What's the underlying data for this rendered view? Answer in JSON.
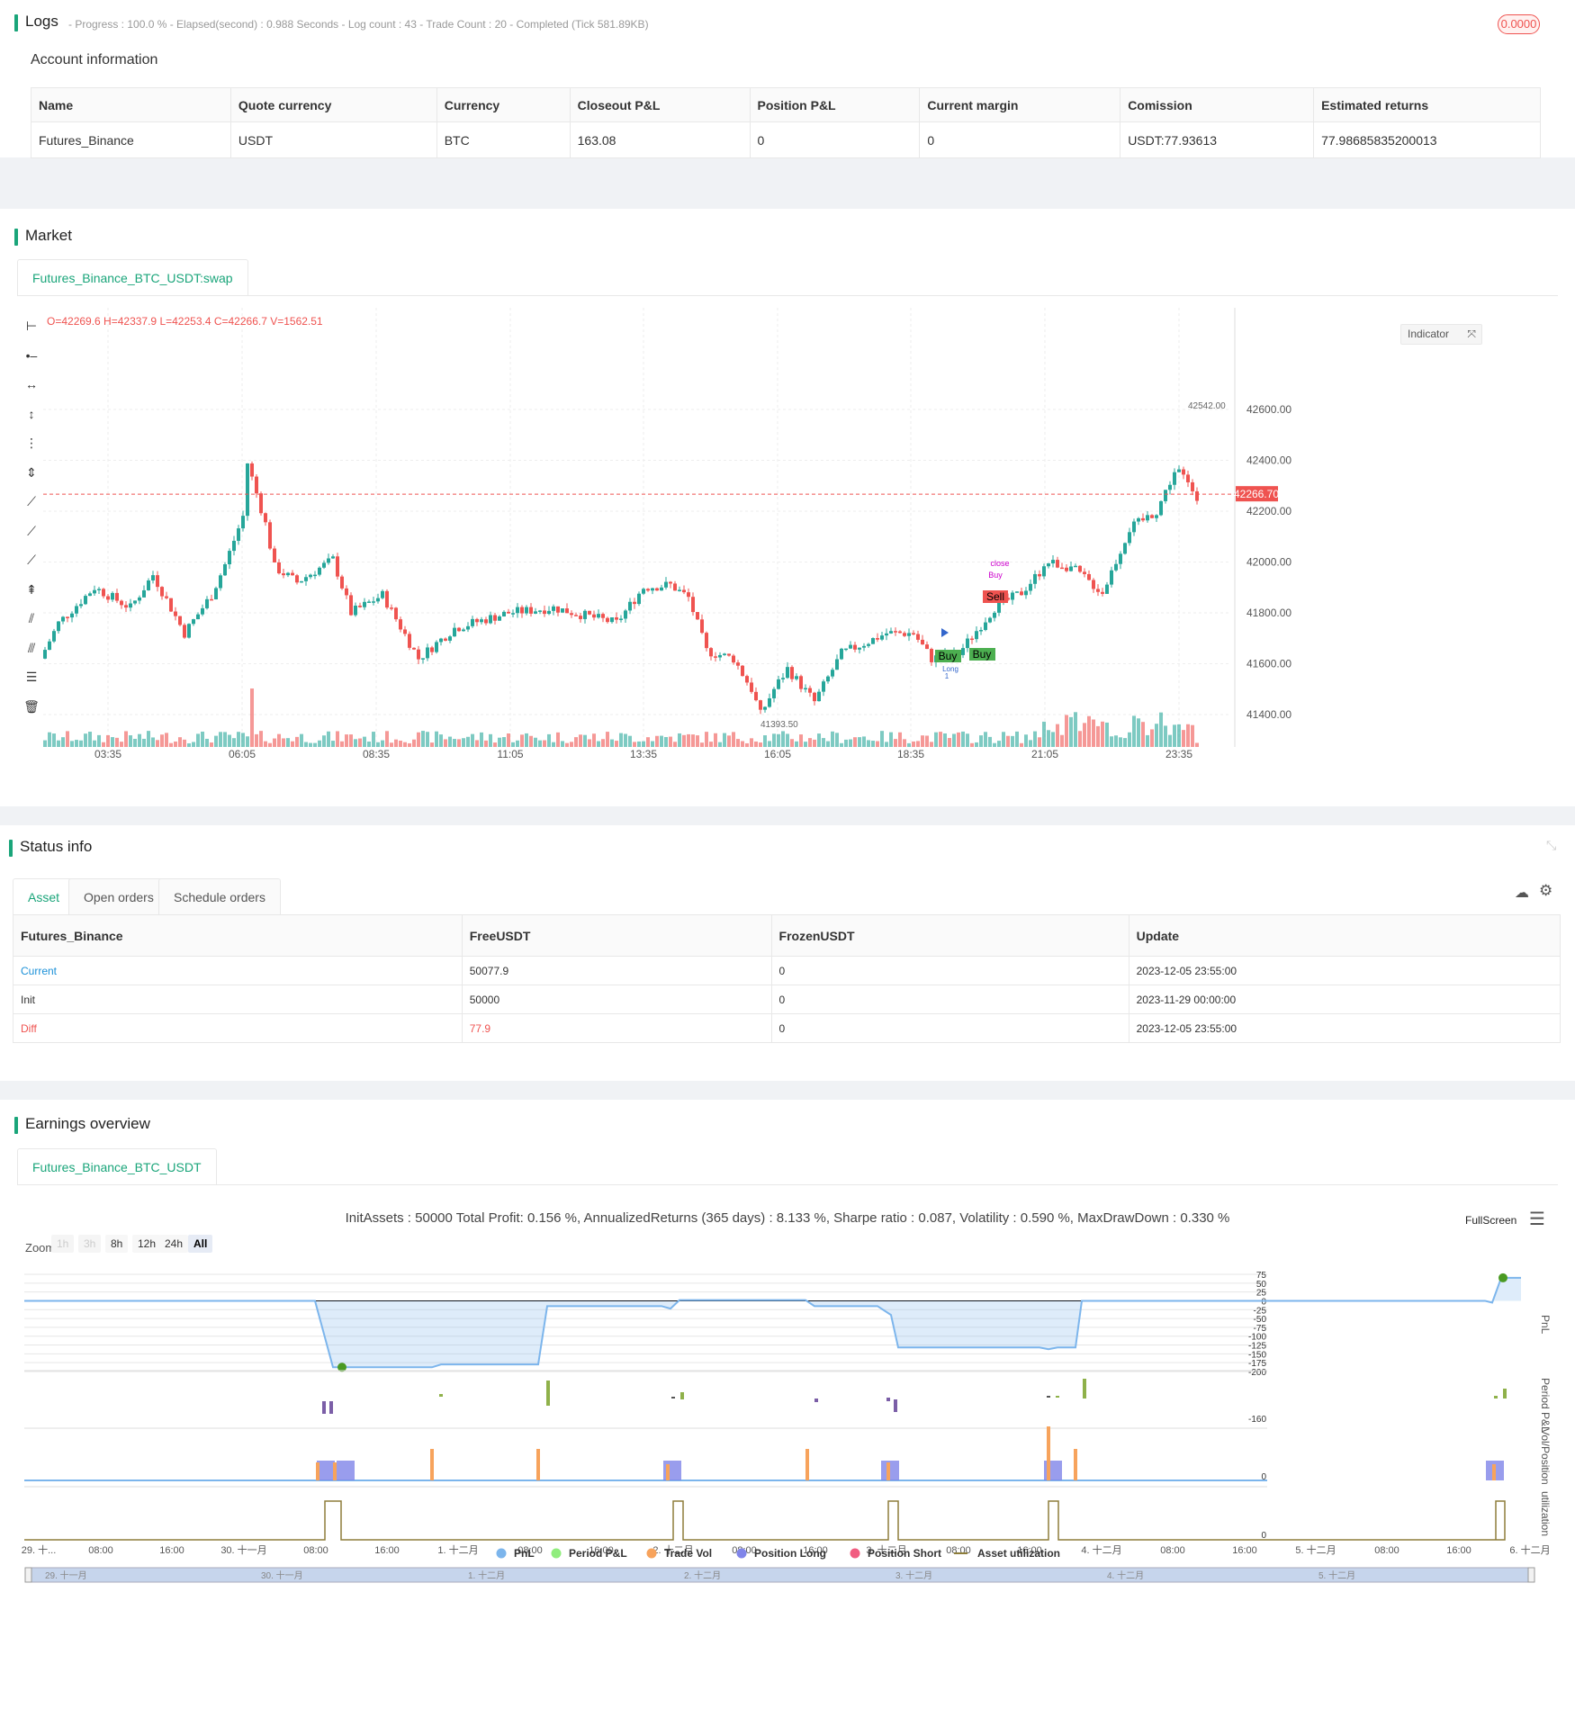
{
  "logs": {
    "title": "Logs",
    "summary": "- Progress : 100.0 % - Elapsed(second) : 0.988  Seconds - Log count : 43 - Trade Count : 20 - Completed (Tick 581.89KB)",
    "badge": "0.0000",
    "account_title": "Account information",
    "columns": [
      "Name",
      "Quote currency",
      "Currency",
      "Closeout P&L",
      "Position P&L",
      "Current margin",
      "Comission",
      "Estimated returns"
    ],
    "row": [
      "Futures_Binance",
      "USDT",
      "BTC",
      "163.08",
      "0",
      "0",
      "USDT:77.93613",
      "77.98685835200013"
    ]
  },
  "market": {
    "title": "Market",
    "tab": "Futures_Binance_BTC_USDT:swap",
    "ohlc": "O=42269.6 H=42337.9 L=42253.4 C=42266.7 V=1562.51",
    "indicator_btn": "Indicator",
    "price_tag": "42266.70",
    "high_label": "42542.00",
    "low_label": "41393.50",
    "y_ticks": [
      "42600.00",
      "42400.00",
      "42200.00",
      "42000.00",
      "41800.00",
      "41600.00",
      "41400.00"
    ],
    "x_ticks": [
      "03:35",
      "06:05",
      "08:35",
      "11:05",
      "13:35",
      "16:05",
      "18:35",
      "21:05",
      "23:35"
    ],
    "markers": {
      "sell": "Sell",
      "buy1": "Buy",
      "buy2": "Buy",
      "close": "close",
      "buy_small": "Buy",
      "long": "Long",
      "one": "1"
    }
  },
  "status": {
    "title": "Status info",
    "tabs": [
      "Asset",
      "Open orders",
      "Schedule orders"
    ],
    "columns": [
      "Futures_Binance",
      "FreeUSDT",
      "FrozenUSDT",
      "Update"
    ],
    "rows": [
      [
        "Current",
        "50077.9",
        "0",
        "2023-12-05 23:55:00"
      ],
      [
        "Init",
        "50000",
        "0",
        "2023-11-29 00:00:00"
      ],
      [
        "Diff",
        "77.9",
        "0",
        "2023-12-05 23:55:00"
      ]
    ]
  },
  "earnings": {
    "title": "Earnings overview",
    "tab": "Futures_Binance_BTC_USDT",
    "summary": "InitAssets : 50000 Total Profit: 0.156 %, AnnualizedReturns (365 days) : 8.133 %, Sharpe ratio : 0.087, Volatility : 0.590 %, MaxDrawDown : 0.330 %",
    "fullscreen": "FullScreen",
    "zoom_label": "Zoom",
    "zoom": [
      "1h",
      "3h",
      "8h",
      "12h",
      "24h",
      "All"
    ],
    "pnl_ticks": [
      "75",
      "50",
      "25",
      "0",
      "-25",
      "-50",
      "-75",
      "-100",
      "-125",
      "-150",
      "-175",
      "-200"
    ],
    "axis_names": [
      "PnL",
      "Period P&L",
      "Vol/Position",
      "utilization"
    ],
    "period_tick": "-160",
    "vol_tick": "0",
    "util_tick": "0",
    "x_ticks": [
      "29. 十...",
      "08:00",
      "16:00",
      "30. 十一月",
      "08:00",
      "16:00",
      "1. 十二月",
      "08:00",
      "16:00",
      "2. 十二月",
      "08:00",
      "16:00",
      "3. 十二月",
      "08:00",
      "16:00",
      "4. 十二月",
      "08:00",
      "16:00",
      "5. 十二月",
      "08:00",
      "16:00",
      "6. 十二月"
    ],
    "nav_ticks": [
      "29. 十一月",
      "30. 十一月",
      "1. 十二月",
      "2. 十二月",
      "3. 十二月",
      "4. 十二月",
      "5. 十二月"
    ],
    "legend": [
      {
        "label": "PnL",
        "color": "#7cb5ec"
      },
      {
        "label": "Period P&L",
        "color": "#90ed7d"
      },
      {
        "label": "Trade Vol",
        "color": "#f7a35c"
      },
      {
        "label": "Position Long",
        "color": "#8085e9"
      },
      {
        "label": "Position Short",
        "color": "#f15c80"
      },
      {
        "label": "Asset utilization",
        "color": "#8d7d3a"
      }
    ]
  },
  "colors": {
    "accent": "#1aa57a",
    "up": "#26a69a",
    "down": "#ef5350",
    "pnl": "#7cb5ec"
  },
  "icons": [
    "horizontal-ray-icon",
    "horizontal-line-icon",
    "horizontal-segment-icon",
    "vertical-line-icon",
    "vertical-segment-icon",
    "vertical-ray-icon",
    "trend-line-icon",
    "trend-ray-icon",
    "trend-segment-icon",
    "price-range-icon",
    "parallel-channel-icon",
    "parallel-lines-icon",
    "fib-lines-icon",
    "trash-icon"
  ]
}
